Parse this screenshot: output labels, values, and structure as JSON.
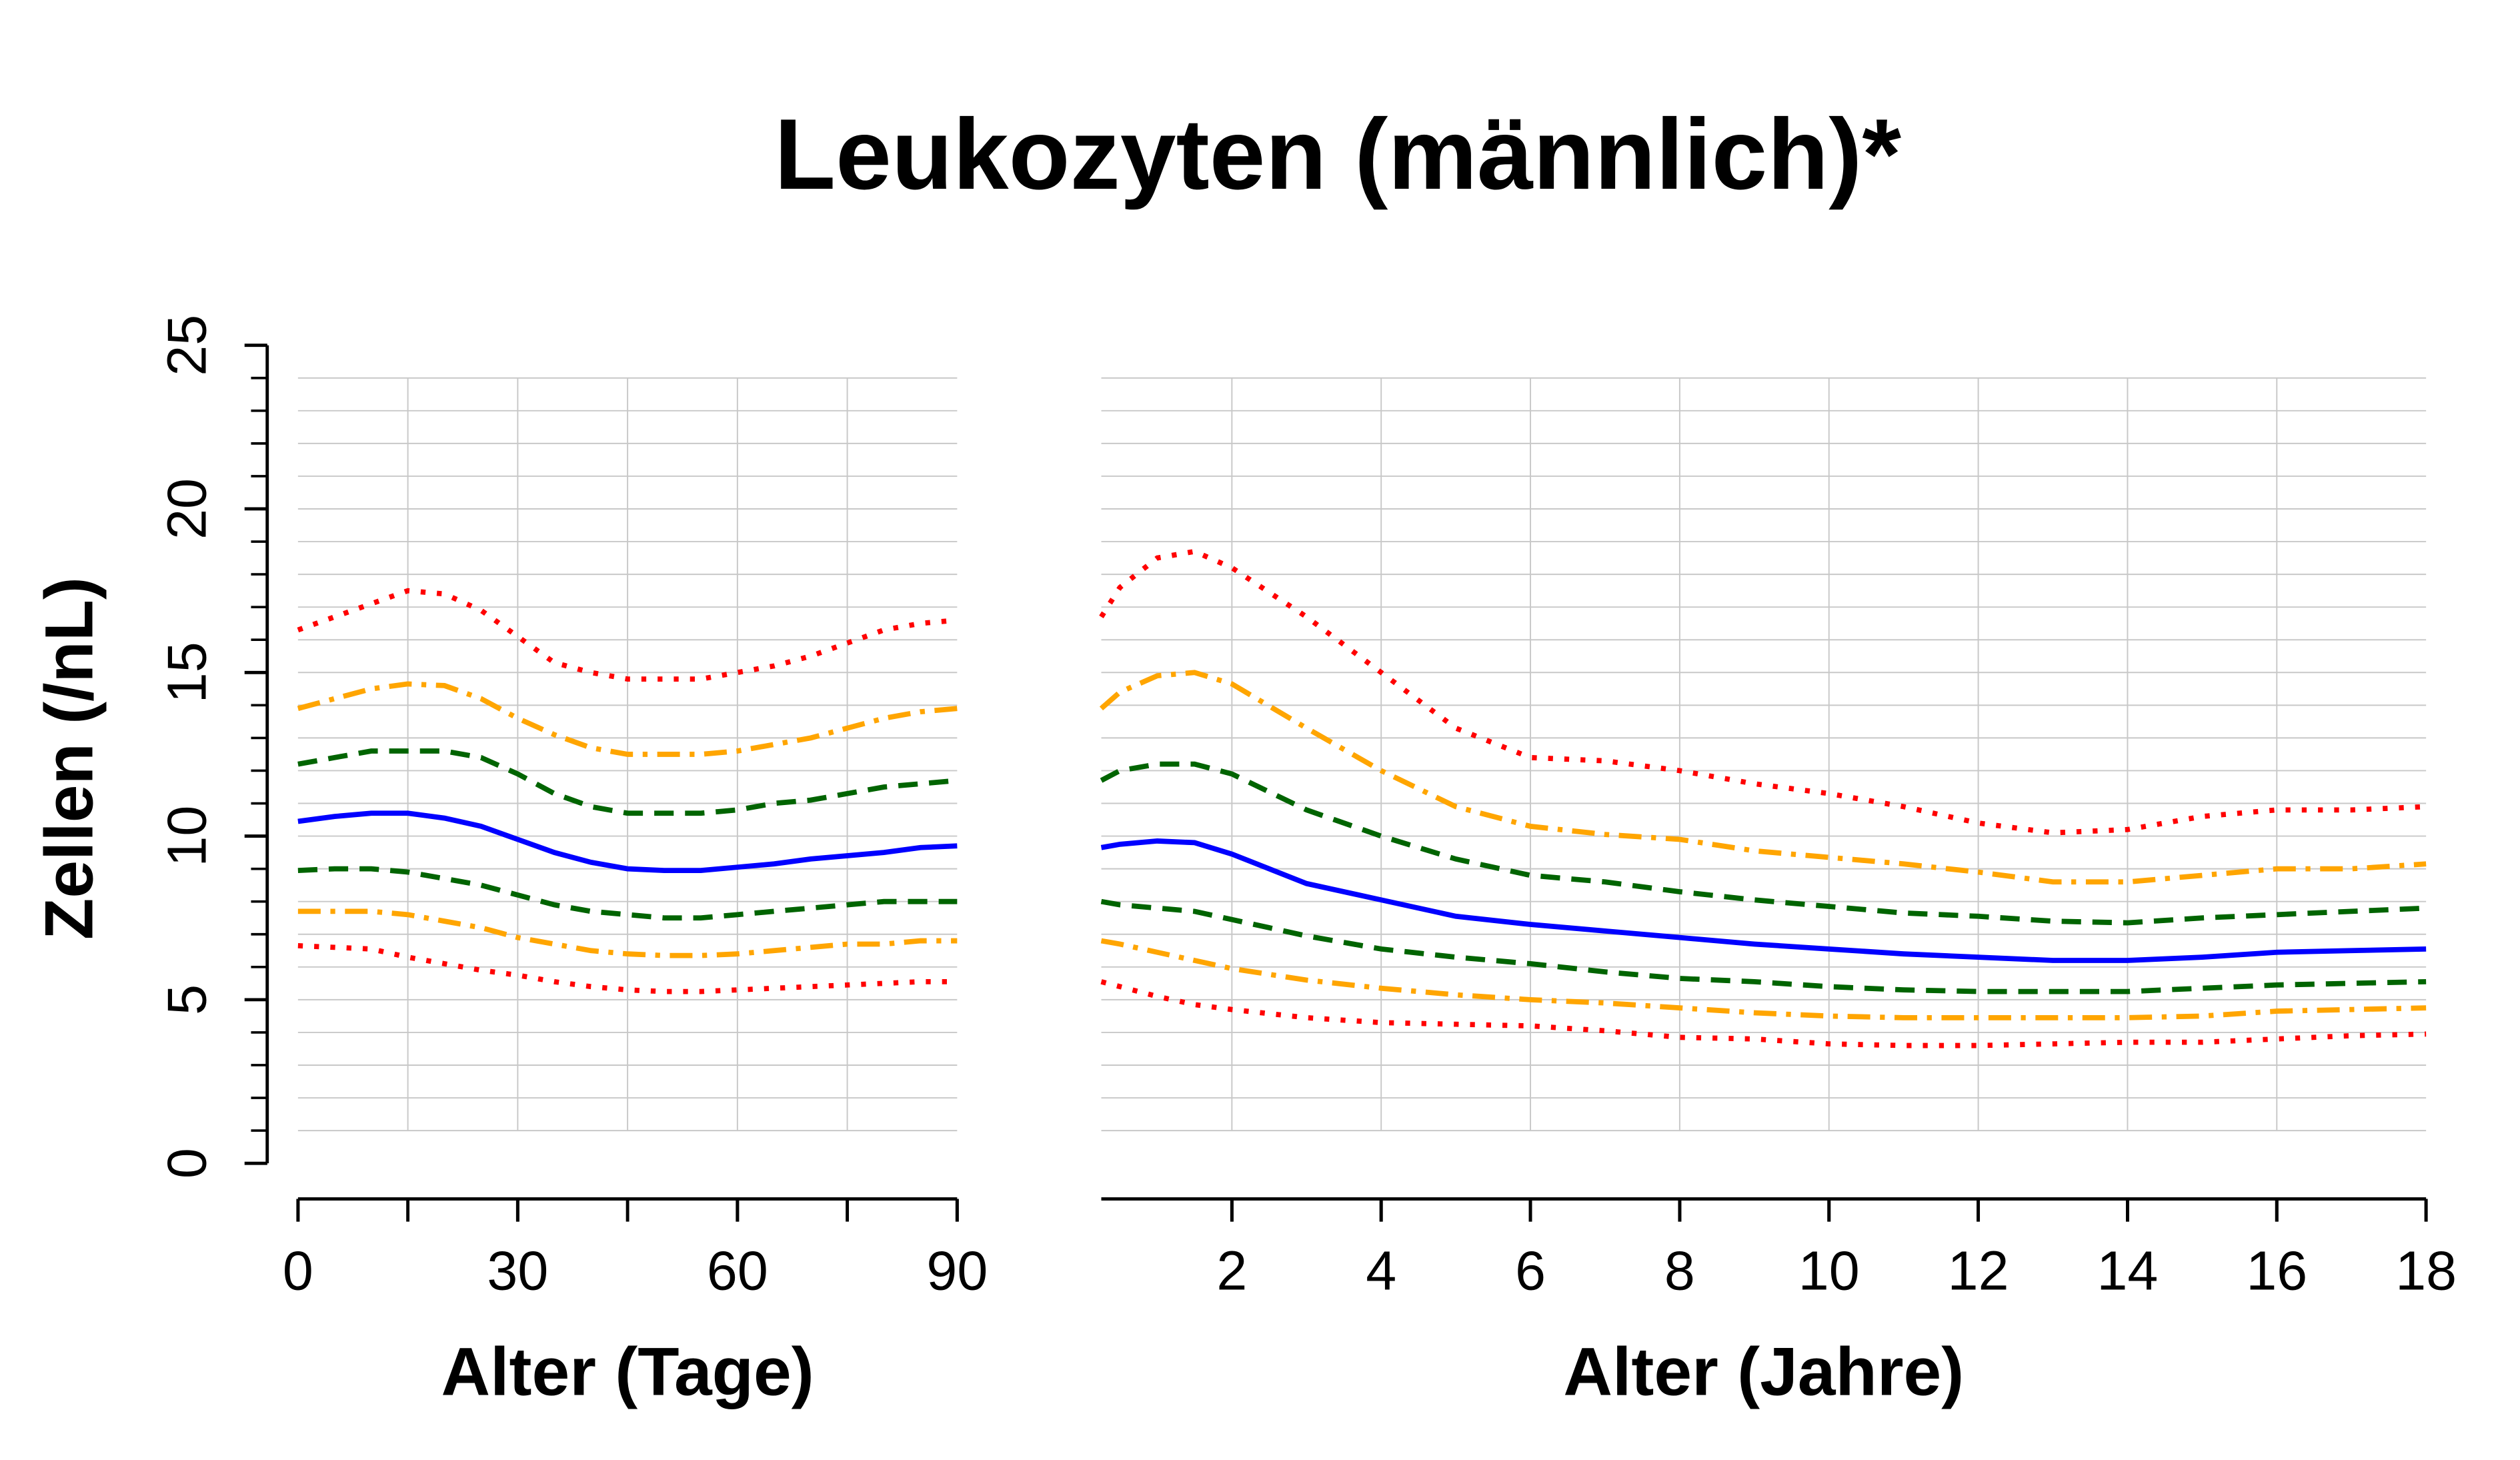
{
  "chart_data": [
    {
      "type": "line",
      "title": "Leukozyten (männlich)*",
      "ylabel": "Zellen (/nL)",
      "xlabel": "Alter (Tage)",
      "x": [
        0,
        5,
        10,
        15,
        20,
        25,
        30,
        35,
        40,
        45,
        50,
        55,
        60,
        65,
        70,
        75,
        80,
        85,
        90
      ],
      "xlim": [
        0,
        90
      ],
      "xticks": [
        0,
        30,
        60,
        90
      ],
      "xminor_ticks": [
        0,
        15,
        30,
        45,
        60,
        75,
        90
      ],
      "ylim": [
        0,
        25
      ],
      "yticks": [
        0,
        5,
        10,
        15,
        20,
        25
      ],
      "yminor_ticks": [
        0,
        1,
        2,
        3,
        4,
        5,
        6,
        7,
        8,
        9,
        10,
        11,
        12,
        13,
        14,
        15,
        16,
        17,
        18,
        19,
        20,
        21,
        22,
        23,
        24,
        25
      ],
      "grid": true,
      "yaxis": true,
      "series": [
        {
          "color": "#ff0000",
          "linestyle": "dotted",
          "values": [
            16.3,
            16.7,
            17.1,
            17.5,
            17.4,
            16.9,
            16.1,
            15.3,
            15.0,
            14.8,
            14.8,
            14.8,
            15.0,
            15.2,
            15.5,
            15.9,
            16.3,
            16.5,
            16.6
          ]
        },
        {
          "color": "#ffa500",
          "linestyle": "dashdot",
          "values": [
            13.9,
            14.2,
            14.5,
            14.65,
            14.6,
            14.2,
            13.6,
            13.1,
            12.7,
            12.5,
            12.5,
            12.5,
            12.6,
            12.8,
            13.0,
            13.3,
            13.6,
            13.8,
            13.9
          ]
        },
        {
          "color": "#006400",
          "linestyle": "dashed",
          "values": [
            12.2,
            12.4,
            12.6,
            12.6,
            12.6,
            12.4,
            11.9,
            11.3,
            10.9,
            10.7,
            10.7,
            10.7,
            10.8,
            11.0,
            11.1,
            11.3,
            11.5,
            11.6,
            11.7
          ]
        },
        {
          "color": "#0000ff",
          "linestyle": "solid",
          "values": [
            10.45,
            10.6,
            10.7,
            10.7,
            10.55,
            10.3,
            9.9,
            9.5,
            9.2,
            9.0,
            8.95,
            8.95,
            9.05,
            9.15,
            9.3,
            9.4,
            9.5,
            9.65,
            9.7
          ]
        },
        {
          "color": "#006400",
          "linestyle": "dashed",
          "values": [
            8.95,
            9.0,
            9.0,
            8.9,
            8.7,
            8.5,
            8.2,
            7.9,
            7.7,
            7.6,
            7.5,
            7.5,
            7.6,
            7.7,
            7.8,
            7.9,
            8.0,
            8.0,
            8.0
          ]
        },
        {
          "color": "#ffa500",
          "linestyle": "dashdot",
          "values": [
            7.7,
            7.7,
            7.7,
            7.6,
            7.4,
            7.2,
            6.9,
            6.7,
            6.5,
            6.4,
            6.35,
            6.35,
            6.4,
            6.5,
            6.6,
            6.7,
            6.7,
            6.8,
            6.8
          ]
        },
        {
          "color": "#ff0000",
          "linestyle": "dotted",
          "values": [
            6.65,
            6.6,
            6.55,
            6.3,
            6.1,
            5.9,
            5.75,
            5.55,
            5.4,
            5.3,
            5.25,
            5.25,
            5.3,
            5.35,
            5.4,
            5.45,
            5.5,
            5.55,
            5.55
          ]
        }
      ]
    },
    {
      "type": "line",
      "xlabel": "Alter (Jahre)",
      "x": [
        0.25,
        0.5,
        1,
        1.5,
        2,
        3,
        4,
        5,
        6,
        7,
        8,
        9,
        10,
        11,
        12,
        13,
        14,
        15,
        16,
        17,
        18
      ],
      "xlim": [
        0.25,
        18
      ],
      "xticks": [
        2,
        4,
        6,
        8,
        10,
        12,
        14,
        16,
        18
      ],
      "xminor_ticks": [
        2,
        4,
        6,
        8,
        10,
        12,
        14,
        16,
        18
      ],
      "ylim": [
        0,
        25
      ],
      "yminor_ticks": [
        0,
        1,
        2,
        3,
        4,
        5,
        6,
        7,
        8,
        9,
        10,
        11,
        12,
        13,
        14,
        15,
        16,
        17,
        18,
        19,
        20,
        21,
        22,
        23,
        24,
        25
      ],
      "grid": true,
      "yaxis": false,
      "series": [
        {
          "color": "#ff0000",
          "linestyle": "dotted",
          "values": [
            16.7,
            17.6,
            18.5,
            18.7,
            18.2,
            16.7,
            15.0,
            13.3,
            12.4,
            12.3,
            12.0,
            11.6,
            11.3,
            10.9,
            10.4,
            10.1,
            10.2,
            10.6,
            10.8,
            10.8,
            10.9
          ]
        },
        {
          "color": "#ffa500",
          "linestyle": "dashdot",
          "values": [
            13.9,
            14.4,
            14.9,
            15.0,
            14.65,
            13.3,
            12.0,
            10.9,
            10.3,
            10.05,
            9.9,
            9.55,
            9.35,
            9.15,
            8.9,
            8.6,
            8.6,
            8.8,
            9.0,
            9.0,
            9.15
          ]
        },
        {
          "color": "#006400",
          "linestyle": "dashed",
          "values": [
            11.7,
            12.0,
            12.2,
            12.2,
            11.9,
            10.8,
            10.0,
            9.3,
            8.8,
            8.6,
            8.3,
            8.05,
            7.85,
            7.65,
            7.55,
            7.4,
            7.35,
            7.5,
            7.6,
            7.7,
            7.8
          ]
        },
        {
          "color": "#0000ff",
          "linestyle": "solid",
          "values": [
            9.65,
            9.75,
            9.85,
            9.8,
            9.45,
            8.55,
            8.05,
            7.55,
            7.3,
            7.1,
            6.9,
            6.7,
            6.55,
            6.4,
            6.3,
            6.2,
            6.2,
            6.3,
            6.45,
            6.5,
            6.55
          ]
        },
        {
          "color": "#006400",
          "linestyle": "dashed",
          "values": [
            8.0,
            7.9,
            7.8,
            7.7,
            7.45,
            6.95,
            6.55,
            6.3,
            6.1,
            5.85,
            5.65,
            5.55,
            5.4,
            5.3,
            5.25,
            5.25,
            5.25,
            5.35,
            5.45,
            5.5,
            5.55
          ]
        },
        {
          "color": "#ffa500",
          "linestyle": "dashdot",
          "values": [
            6.8,
            6.7,
            6.45,
            6.2,
            5.95,
            5.6,
            5.35,
            5.15,
            5.0,
            4.9,
            4.75,
            4.6,
            4.5,
            4.45,
            4.45,
            4.45,
            4.45,
            4.5,
            4.65,
            4.7,
            4.75
          ]
        },
        {
          "color": "#ff0000",
          "linestyle": "dotted",
          "values": [
            5.55,
            5.4,
            5.1,
            4.85,
            4.7,
            4.45,
            4.3,
            4.25,
            4.2,
            4.05,
            3.85,
            3.8,
            3.65,
            3.6,
            3.6,
            3.65,
            3.7,
            3.7,
            3.8,
            3.9,
            3.95
          ]
        }
      ]
    }
  ]
}
